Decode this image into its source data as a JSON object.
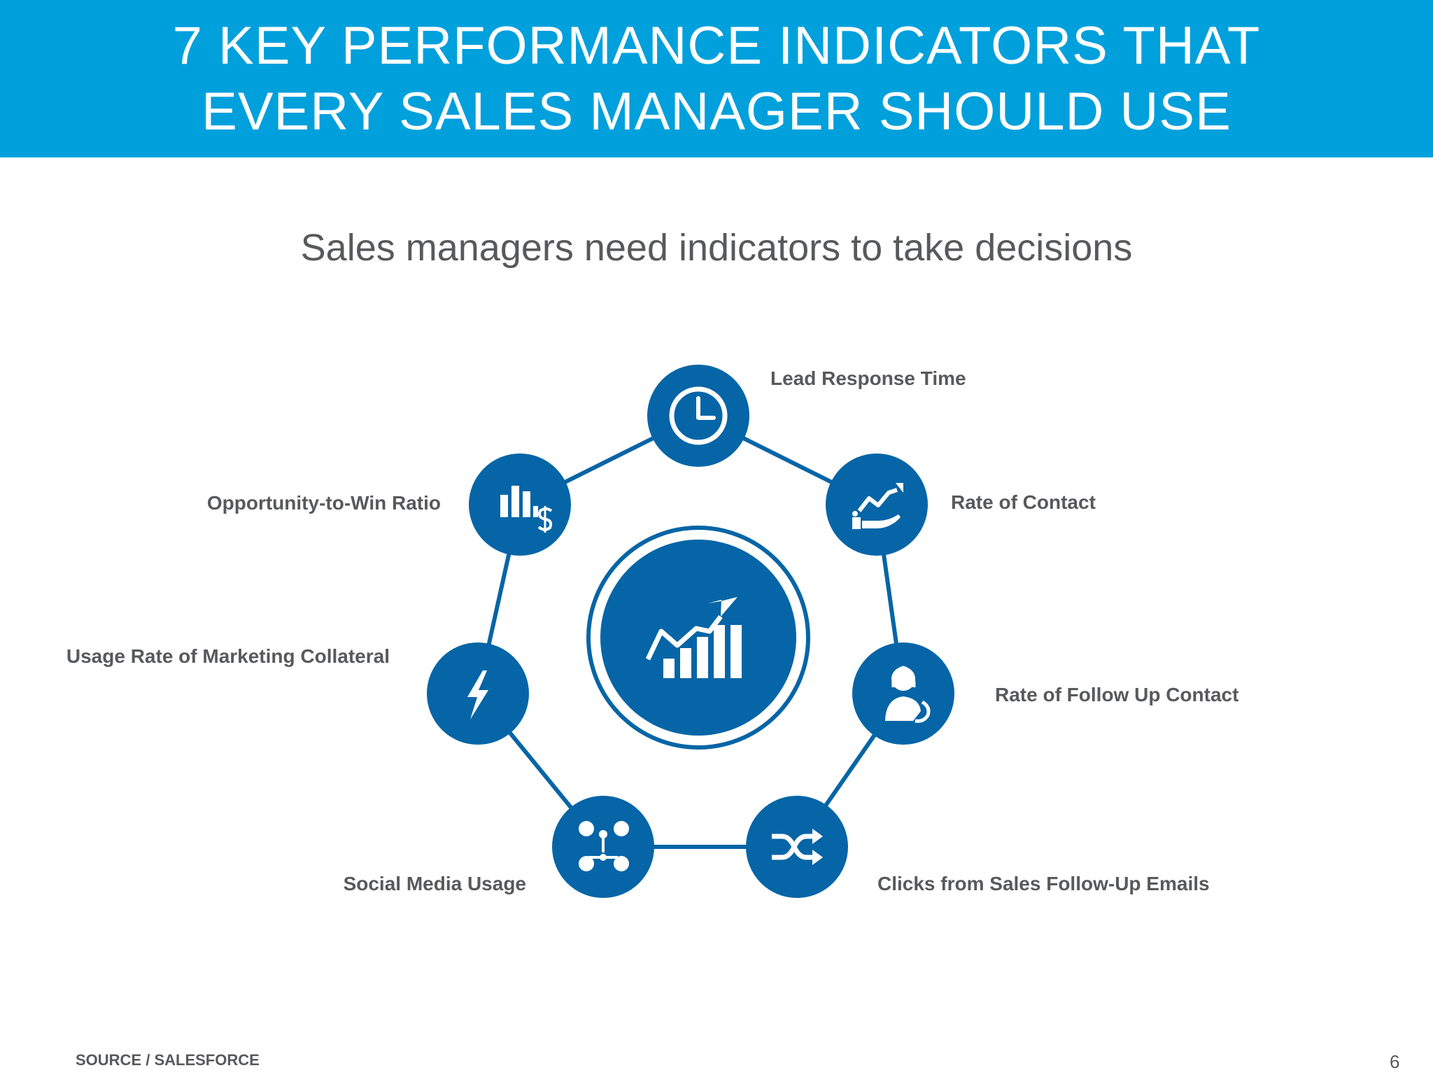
{
  "header": {
    "title_line1": "7 KEY PERFORMANCE INDICATORS THAT",
    "title_line2": "EVERY SALES MANAGER SHOULD USE"
  },
  "subtitle": "Sales managers need indicators to take decisions",
  "indicators": [
    {
      "label": "Lead Response Time",
      "icon": "clock-icon"
    },
    {
      "label": "Rate of Contact",
      "icon": "growth-chart-hand-icon"
    },
    {
      "label": "Rate of Follow Up Contact",
      "icon": "support-agent-icon"
    },
    {
      "label": "Clicks from Sales Follow-Up Emails",
      "icon": "shuffle-arrows-icon"
    },
    {
      "label": "Social Media Usage",
      "icon": "social-network-icon"
    },
    {
      "label": "Usage Rate of Marketing Collateral",
      "icon": "lightning-bolt-icon"
    },
    {
      "label": "Opportunity-to-Win Ratio",
      "icon": "bar-chart-dollar-icon"
    }
  ],
  "center_icon": "growth-chart-icon",
  "footer": {
    "source": "SOURCE / SALESFORCE",
    "page_number": "6"
  },
  "colors": {
    "header_blue": "#00a0dc",
    "node_blue": "#0565a6",
    "text_gray": "#58595b"
  }
}
